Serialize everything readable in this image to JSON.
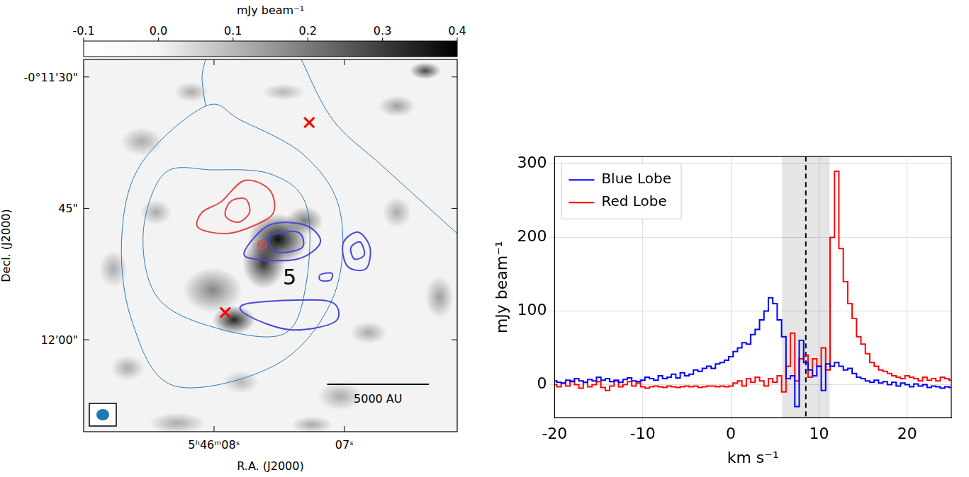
{
  "image_panel": {
    "colorbar": {
      "label": "mJy beam⁻¹",
      "range": [
        -0.1,
        0.4
      ],
      "ticks": [
        -0.1,
        {
          "value": 0,
          "label": "0.0"
        },
        0.1,
        0.2,
        0.3,
        0.4
      ]
    },
    "x_label": "R.A. (J2000)",
    "y_label": "Decl. (J2000)",
    "xlim": [
      9.0,
      6.135
    ],
    "xticks": [
      {
        "value": 8,
        "label": "5ʰ46ᵐ08ˢ"
      },
      {
        "value": 7,
        "label": "07ˢ"
      }
    ],
    "ylim": [
      -730.5,
      -688
    ],
    "yticks": [
      {
        "value": -690,
        "label": "-0°11'30\""
      },
      {
        "value": -705,
        "label": "45\""
      },
      {
        "value": -720,
        "label": "12'00\""
      }
    ],
    "markers": [
      {
        "x": 7.27,
        "y": -695.2,
        "marker": "x",
        "color": "red"
      },
      {
        "x": 7.914,
        "y": -716.9,
        "marker": "x",
        "color": "red"
      }
    ],
    "annotations": [
      {
        "text": "5",
        "x": 7.42,
        "y": -712.7
      }
    ],
    "scale_bar": {
      "label": "5000 AU",
      "length": 0.78
    }
  },
  "chart_data": {
    "type": "line",
    "x_label": "km s⁻¹",
    "y_label": "mJy beam⁻¹",
    "xlim": [
      -20,
      25
    ],
    "xticks": [
      -20,
      -10,
      0,
      10,
      20
    ],
    "ylim": [
      -45,
      310
    ],
    "yticks": [
      0,
      100,
      200,
      300
    ],
    "grid": true,
    "legend": "upper left",
    "shaded_range": [
      5.8,
      11.2
    ],
    "vline": 8.5,
    "x": [
      -20,
      -19.5,
      -19,
      -18.5,
      -18,
      -17.5,
      -17,
      -16.5,
      -16,
      -15.5,
      -15,
      -14.5,
      -14,
      -13.5,
      -13,
      -12.5,
      -12,
      -11.5,
      -11,
      -10.5,
      -10,
      -9.5,
      -9,
      -8.5,
      -8,
      -7.5,
      -7,
      -6.5,
      -6,
      -5.5,
      -5,
      -4.5,
      -4,
      -3.5,
      -3,
      -2.5,
      -2,
      -1.5,
      -1,
      -0.5,
      0,
      0.5,
      1,
      1.5,
      2,
      2.5,
      3,
      3.5,
      4,
      4.5,
      5,
      5.5,
      6,
      6.5,
      7,
      7.5,
      8,
      8.5,
      9,
      9.5,
      10,
      10.5,
      11,
      11.5,
      12,
      12.5,
      13,
      13.5,
      14,
      14.5,
      15,
      15.5,
      16,
      16.5,
      17,
      17.5,
      18,
      18.5,
      19,
      19.5,
      20,
      20.5,
      21,
      21.5,
      22,
      22.5,
      23,
      23.5,
      24,
      24.5,
      25
    ],
    "series": [
      {
        "name": "Blue Lobe",
        "color": "#0000ff",
        "values": [
          5,
          3,
          2,
          6,
          4,
          8,
          5,
          3,
          7,
          5,
          10,
          6,
          8,
          4,
          6,
          3,
          7,
          9,
          5,
          4,
          6,
          10,
          8,
          6,
          12,
          8,
          10,
          14,
          9,
          16,
          12,
          14,
          20,
          18,
          22,
          25,
          22,
          28,
          30,
          33,
          38,
          45,
          50,
          57,
          55,
          68,
          75,
          88,
          100,
          118,
          110,
          88,
          65,
          8,
          12,
          -30,
          60,
          30,
          20,
          12,
          25,
          -8,
          28,
          25,
          30,
          25,
          20,
          22,
          15,
          10,
          8,
          5,
          3,
          6,
          2,
          4,
          0,
          3,
          -2,
          2,
          0,
          -3,
          1,
          -2,
          0,
          -4,
          -2,
          -3,
          -5,
          -3,
          -4
        ]
      },
      {
        "name": "Red Lobe",
        "color": "#ff0000",
        "values": [
          0,
          -3,
          2,
          -2,
          5,
          0,
          -5,
          3,
          -3,
          0,
          4,
          -4,
          -8,
          -2,
          5,
          -3,
          0,
          4,
          -2,
          2,
          -3,
          -5,
          -3,
          -2,
          -3,
          -4,
          -2,
          -3,
          -4,
          -3,
          -2,
          -3,
          -2,
          -4,
          -3,
          -2,
          -2,
          -3,
          -2,
          -3,
          -2,
          2,
          5,
          -2,
          8,
          3,
          10,
          5,
          -2,
          8,
          3,
          12,
          -10,
          25,
          70,
          5,
          35,
          40,
          10,
          35,
          25,
          50,
          20,
          200,
          290,
          185,
          140,
          110,
          90,
          65,
          55,
          42,
          30,
          25,
          20,
          18,
          15,
          12,
          10,
          8,
          12,
          10,
          8,
          5,
          10,
          6,
          8,
          5,
          10,
          8,
          6
        ]
      }
    ]
  }
}
